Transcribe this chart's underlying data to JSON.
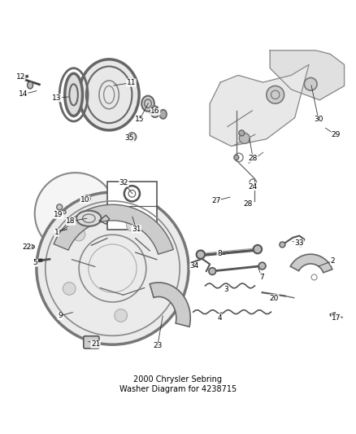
{
  "title": "2000 Chrysler Sebring\nWasher Diagram for 4238715",
  "title_fontsize": 7,
  "background_color": "#ffffff",
  "text_color": "#000000",
  "line_color": "#555555",
  "fig_width": 4.38,
  "fig_height": 5.33,
  "dpi": 100
}
